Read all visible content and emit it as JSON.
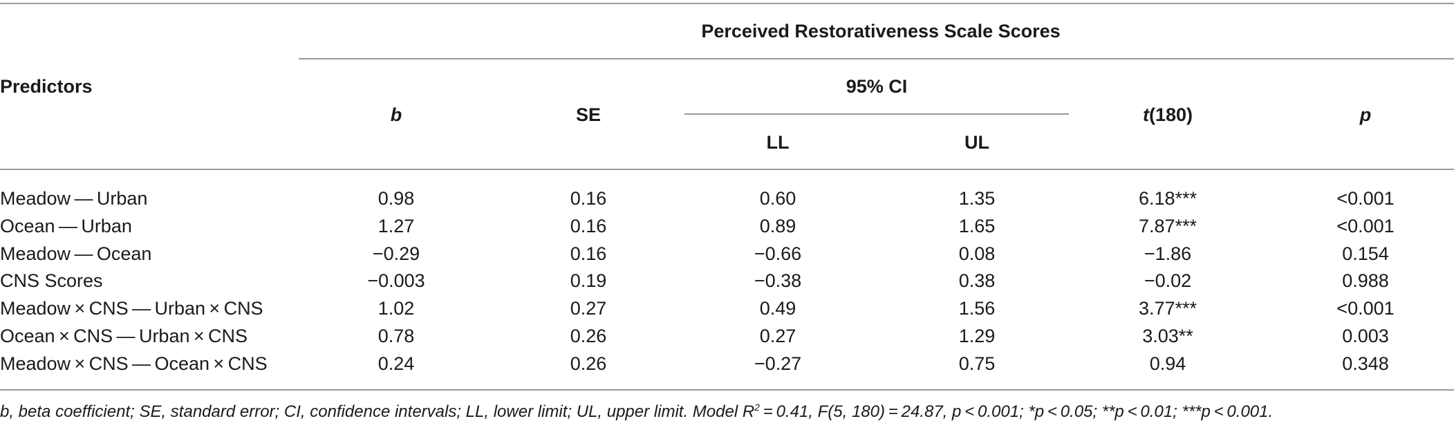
{
  "table": {
    "group_header": "Perceived Restorativeness Scale Scores",
    "predictors_header": "Predictors",
    "col_b": "b",
    "col_se": "SE",
    "ci_header": "95% CI",
    "col_ll": "LL",
    "col_ul": "UL",
    "col_t_italic": "t",
    "col_t_rest": "(180)",
    "col_p": "p",
    "rows": [
      {
        "predictor": "Meadow — Urban",
        "b": "0.98",
        "se": "0.16",
        "ll": "0.60",
        "ul": "1.35",
        "t": "6.18***",
        "p": "<0.001"
      },
      {
        "predictor": "Ocean — Urban",
        "b": "1.27",
        "se": "0.16",
        "ll": "0.89",
        "ul": "1.65",
        "t": "7.87***",
        "p": "<0.001"
      },
      {
        "predictor": "Meadow — Ocean",
        "b": "−0.29",
        "se": "0.16",
        "ll": "−0.66",
        "ul": "0.08",
        "t": "−1.86",
        "p": "0.154"
      },
      {
        "predictor": "CNS Scores",
        "b": "−0.003",
        "se": "0.19",
        "ll": "−0.38",
        "ul": "0.38",
        "t": "−0.02",
        "p": "0.988"
      },
      {
        "predictor": "Meadow × CNS — Urban × CNS",
        "b": "1.02",
        "se": "0.27",
        "ll": "0.49",
        "ul": "1.56",
        "t": "3.77***",
        "p": "<0.001"
      },
      {
        "predictor": "Ocean × CNS — Urban × CNS",
        "b": "0.78",
        "se": "0.26",
        "ll": "0.27",
        "ul": "1.29",
        "t": "3.03**",
        "p": "0.003"
      },
      {
        "predictor": "Meadow × CNS — Ocean × CNS",
        "b": "0.24",
        "se": "0.26",
        "ll": "−0.27",
        "ul": "0.75",
        "t": "0.94",
        "p": "0.348"
      }
    ]
  },
  "footnote": {
    "part1": "b, beta coefficient; SE, standard error; CI, confidence intervals; LL, lower limit; UL, upper limit. Model R",
    "sup": "2",
    "part2": " = 0.41, F(5, 180) = 24.87, p < 0.001;  *p < 0.05;  **p < 0.01;  ***p < 0.001."
  }
}
